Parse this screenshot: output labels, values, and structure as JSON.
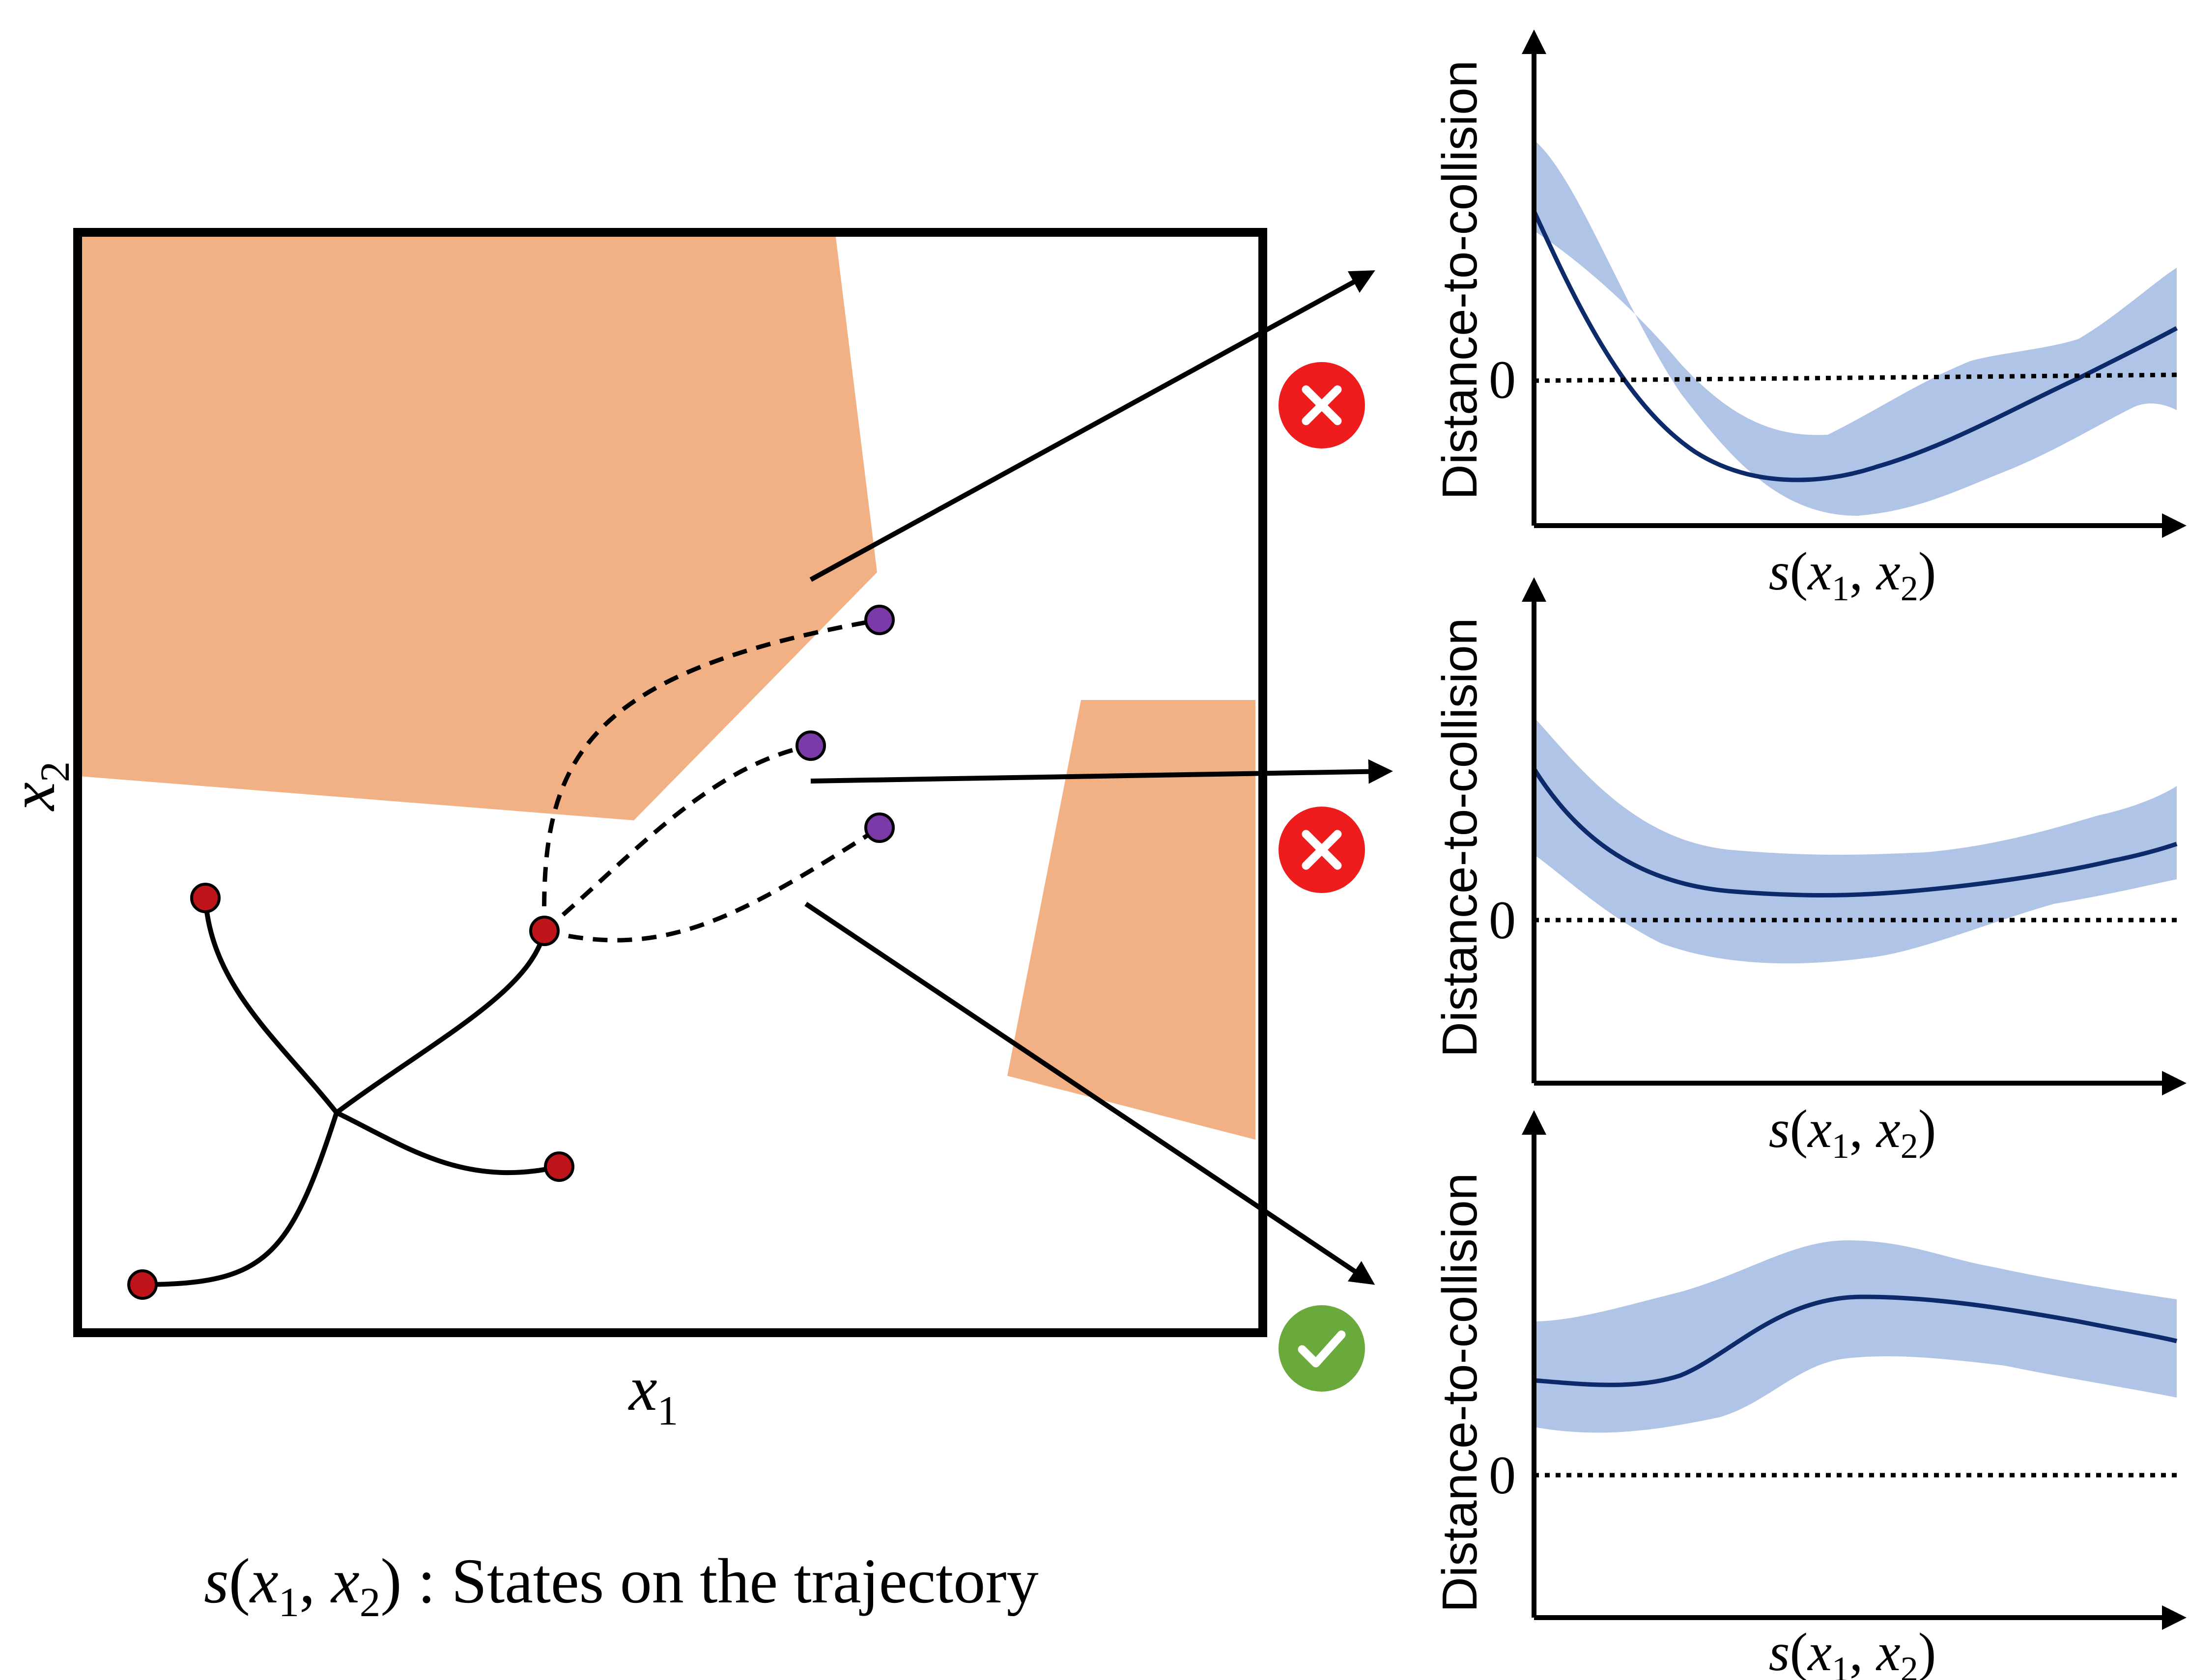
{
  "colors": {
    "obstacle": "#f2b185",
    "node_red": "#c0141b",
    "node_purple": "#7a3aa8",
    "mean_line": "#0d2a6b",
    "band": "#b0c4e8",
    "fail": "#ee1c1c",
    "success": "#6aaa3c",
    "ink": "#000000"
  },
  "map": {
    "xlabel_var": "x",
    "xlabel_sub": "1",
    "ylabel_var": "x",
    "ylabel_sub": "2"
  },
  "caption": {
    "s": "s",
    "arg1_var": "x",
    "arg1_sub": "1",
    "arg2_var": "x",
    "arg2_sub": "2",
    "text": " : States on the trajectory"
  },
  "plots": [
    {
      "ylabel": "Distance-to-collision",
      "zero_label": "0",
      "x_var_s": "s",
      "x_arg1_var": "x",
      "x_arg1_sub": "1",
      "x_arg2_var": "x",
      "x_arg2_sub": "2",
      "status": "fail",
      "status_icon": "x-circle-icon"
    },
    {
      "ylabel": "Distance-to-collision",
      "zero_label": "0",
      "x_var_s": "s",
      "x_arg1_var": "x",
      "x_arg1_sub": "1",
      "x_arg2_var": "x",
      "x_arg2_sub": "2",
      "status": "fail",
      "status_icon": "x-circle-icon"
    },
    {
      "ylabel": "Distance-to-collision",
      "zero_label": "0",
      "x_var_s": "s",
      "x_arg1_var": "x",
      "x_arg1_sub": "1",
      "x_arg2_var": "x",
      "x_arg2_sub": "2",
      "status": "success",
      "status_icon": "check-circle-icon"
    }
  ]
}
